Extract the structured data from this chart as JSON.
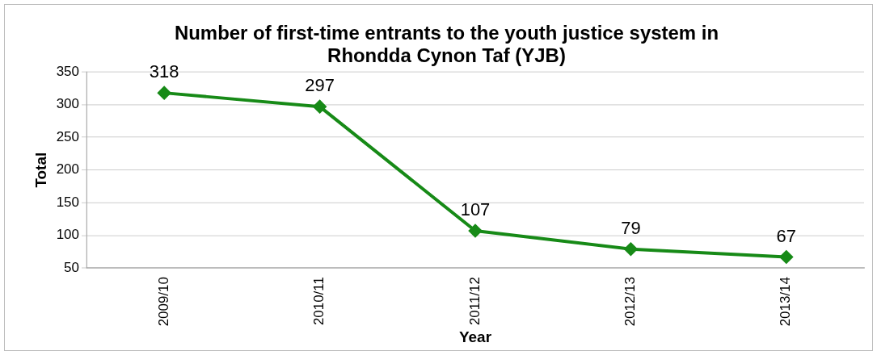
{
  "chart_data": {
    "type": "line",
    "title": "Number of first-time entrants to the youth justice system in Rhondda Cynon Taf (YJB)",
    "xlabel": "Year",
    "ylabel": "Total",
    "categories": [
      "2009/10",
      "2010/11",
      "2011/12",
      "2012/13",
      "2013/14"
    ],
    "series": [
      {
        "color": "#178a17",
        "values": [
          318,
          297,
          107,
          79,
          67
        ]
      }
    ],
    "ylim": [
      50,
      350
    ],
    "yticks": [
      50,
      100,
      150,
      200,
      250,
      300,
      350
    ],
    "grid": "y",
    "marker": "diamond",
    "line_style": "solid",
    "data_labels": true,
    "legend": false
  }
}
